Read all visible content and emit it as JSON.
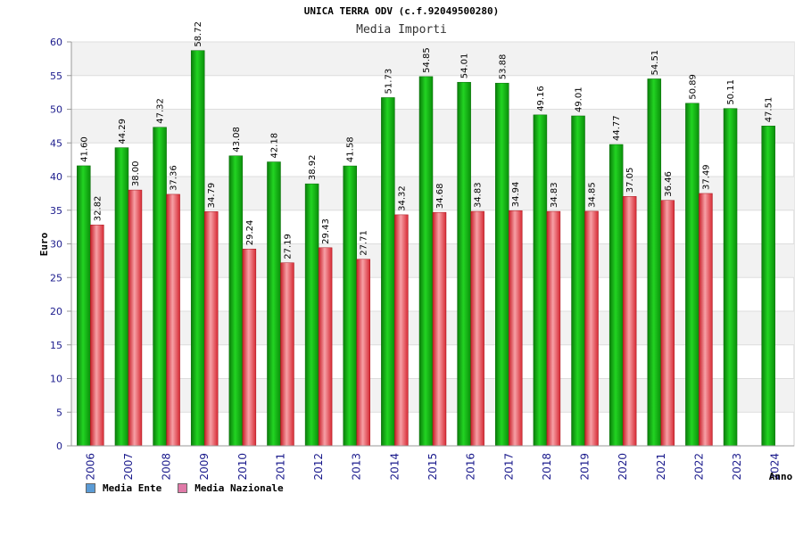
{
  "chart_data": {
    "type": "bar",
    "title": "UNICA TERRA ODV (c.f.92049500280)",
    "subtitle": "Media Importi",
    "xlabel": "Anno",
    "ylabel": "Euro",
    "ylim": [
      0,
      60
    ],
    "yticks": [
      0,
      5,
      10,
      15,
      20,
      25,
      30,
      35,
      40,
      45,
      50,
      55,
      60
    ],
    "grid": true,
    "categories": [
      "2006",
      "2007",
      "2008",
      "2009",
      "2010",
      "2011",
      "2012",
      "2013",
      "2014",
      "2015",
      "2016",
      "2017",
      "2018",
      "2019",
      "2020",
      "2021",
      "2022",
      "2023",
      "2024"
    ],
    "series": [
      {
        "name": "Media Ente",
        "color": "#1aaa1a",
        "legend_color": "#5b9bd5",
        "values": [
          41.6,
          44.29,
          47.32,
          58.72,
          43.08,
          42.18,
          38.92,
          41.58,
          51.73,
          54.85,
          54.01,
          53.88,
          49.16,
          49.01,
          44.77,
          54.51,
          50.89,
          50.11,
          47.51
        ]
      },
      {
        "name": "Media Nazionale",
        "color": "#e8333c",
        "legend_color": "#e07aa8",
        "values": [
          32.82,
          38.0,
          37.36,
          34.79,
          29.24,
          27.19,
          29.43,
          27.71,
          34.32,
          34.68,
          34.83,
          34.94,
          34.83,
          34.85,
          37.05,
          36.46,
          37.49,
          null,
          null
        ]
      }
    ],
    "legend_position": "bottom-left"
  }
}
